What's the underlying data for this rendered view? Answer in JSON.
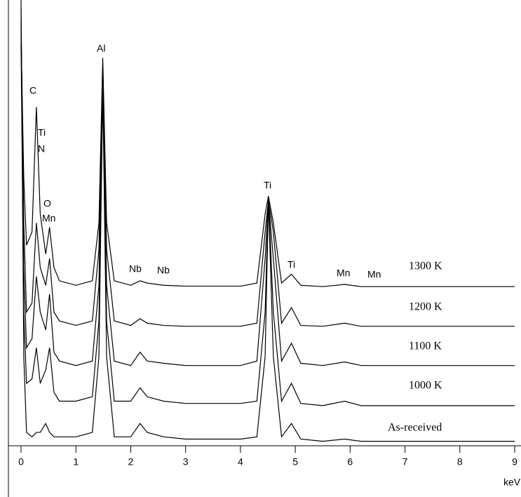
{
  "chart_data": {
    "type": "line",
    "x_label": "keV",
    "x": [
      0,
      0.05,
      0.1,
      0.2,
      0.28,
      0.35,
      0.45,
      0.52,
      0.6,
      0.7,
      1.0,
      1.3,
      1.42,
      1.49,
      1.56,
      1.7,
      2.0,
      2.17,
      2.3,
      2.6,
      3.0,
      3.5,
      4.0,
      4.3,
      4.45,
      4.51,
      4.6,
      4.75,
      4.93,
      5.1,
      5.5,
      5.9,
      6.2,
      7,
      8,
      9
    ],
    "series": [
      {
        "name": "1300 K",
        "color": "#000000",
        "values": [
          92,
          60,
          45,
          48,
          76,
          52,
          43,
          49,
          40,
          37,
          36,
          37,
          50,
          87,
          50,
          37,
          36,
          37,
          36.5,
          36,
          35.8,
          35.8,
          35.8,
          36.5,
          52,
          56,
          50,
          36.5,
          38.5,
          36,
          35.7,
          36.2,
          35.7,
          35.7,
          35.7,
          35.7
        ]
      },
      {
        "name": "1200 K",
        "color": "#000000",
        "values": [
          95,
          50,
          30,
          32,
          50,
          40,
          36,
          42,
          30,
          28,
          27,
          28,
          44,
          85,
          44,
          28,
          27,
          28.5,
          27.5,
          27,
          26.8,
          26.8,
          26.8,
          27.5,
          48,
          55,
          48,
          27.5,
          31,
          27,
          26.8,
          27.5,
          26.8,
          26.8,
          26.8,
          26.8
        ]
      },
      {
        "name": "1100 K",
        "color": "#000000",
        "values": [
          98,
          40,
          22,
          24,
          38,
          30,
          26,
          34,
          21,
          19,
          18,
          19,
          36,
          84,
          36,
          19,
          18,
          21,
          19,
          18.5,
          18,
          18,
          18,
          19,
          42,
          55,
          42,
          19,
          23,
          18.5,
          18,
          18.8,
          18,
          18,
          18,
          18
        ]
      },
      {
        "name": "1000 K",
        "color": "#000000",
        "values": [
          90,
          30,
          14,
          15,
          22,
          14,
          17,
          22,
          12,
          10,
          10,
          11,
          28,
          82,
          28,
          10,
          10,
          13,
          11,
          10,
          9.5,
          9.5,
          9.5,
          10,
          30,
          56,
          30,
          10,
          14,
          9.5,
          9,
          10,
          9,
          9,
          9,
          9
        ]
      },
      {
        "name": "As-received",
        "color": "#000000",
        "values": [
          100,
          20,
          3,
          2,
          3,
          3,
          5,
          3,
          2,
          2,
          2,
          3,
          20,
          80,
          20,
          2,
          2,
          5,
          3,
          2,
          1.5,
          1.5,
          1.5,
          2,
          20,
          55,
          20,
          2,
          5,
          1.5,
          1,
          1.5,
          1,
          1,
          1,
          1
        ]
      }
    ],
    "annotations": [
      "Al",
      "C",
      "Ti",
      "N",
      "O",
      "Mn",
      "Nb",
      "Nb",
      "Ti",
      "Ti",
      "Mn",
      "Mn"
    ],
    "xlim": [
      0,
      9
    ],
    "xticks": [
      0,
      1,
      2,
      3,
      4,
      5,
      6,
      7,
      8,
      9
    ],
    "ylim": [
      0,
      100
    ]
  }
}
